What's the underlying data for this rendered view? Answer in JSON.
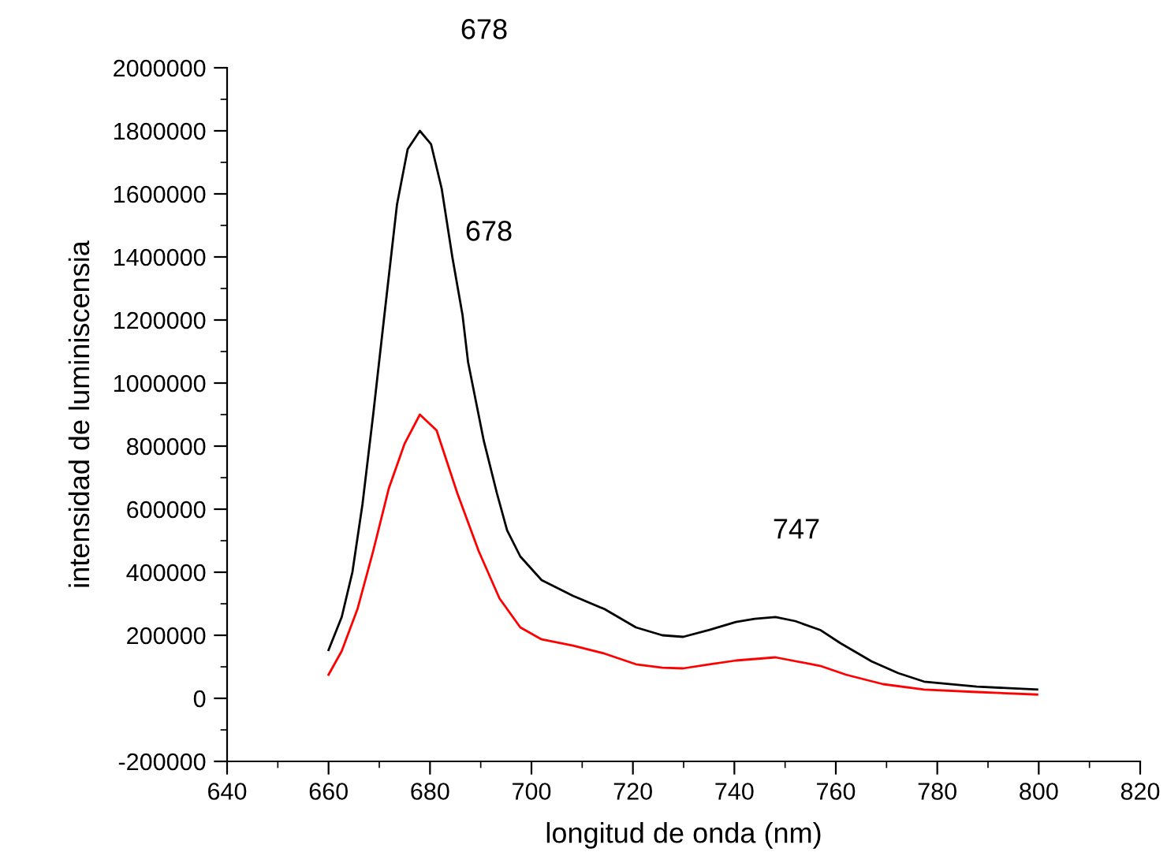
{
  "chart_data": {
    "type": "line",
    "xlabel": "longitud de onda (nm)",
    "ylabel": "intensidad de luminiscensia",
    "series": [
      {
        "color": "#000000",
        "x": [
          660,
          662.6,
          664.7,
          666.7,
          668.8,
          670.9,
          673.5,
          675.6,
          678,
          680.2,
          682.3,
          684.4,
          686.4,
          687.5,
          690.6,
          693.2,
          695.2,
          697.8,
          702,
          708.2,
          714.4,
          720.6,
          725.8,
          729.9,
          735.1,
          740.3,
          744,
          748.1,
          752,
          756.9,
          760.9,
          767.1,
          772.3,
          777.4,
          787.8,
          799.7
        ],
        "values": [
          153000,
          258000,
          400000,
          617000,
          900000,
          1200000,
          1567000,
          1742000,
          1800000,
          1758000,
          1617000,
          1400000,
          1217000,
          1067000,
          817000,
          650000,
          533000,
          450000,
          375000,
          325000,
          283000,
          225000,
          200000,
          195000,
          217000,
          242000,
          252000,
          258000,
          245000,
          217000,
          175000,
          117000,
          80000,
          53000,
          37000,
          28000
        ]
      },
      {
        "color": "#ff0000",
        "x": [
          660,
          662.6,
          665.7,
          668.8,
          671.9,
          675,
          678,
          681.3,
          685.4,
          689.6,
          693.7,
          697.8,
          702,
          708.2,
          714.4,
          720.6,
          725.8,
          729.9,
          735.1,
          740.3,
          748.1,
          756.9,
          762,
          769.3,
          777.4,
          787.8,
          799.7
        ],
        "values": [
          75000,
          150000,
          283000,
          467000,
          667000,
          808000,
          900000,
          850000,
          650000,
          467000,
          317000,
          225000,
          187000,
          167000,
          142000,
          108000,
          97000,
          95000,
          108000,
          120000,
          130000,
          103000,
          75000,
          45000,
          28000,
          20000,
          12000
        ]
      }
    ],
    "xlim": [
      640,
      820
    ],
    "xticks": [
      640,
      660,
      680,
      700,
      720,
      740,
      760,
      780,
      800,
      820
    ],
    "ylim": [
      -200000,
      2000000
    ],
    "yticks": [
      -200000,
      0,
      200000,
      400000,
      600000,
      800000,
      1000000,
      1200000,
      1400000,
      1600000,
      1800000,
      2000000
    ],
    "annotations": [
      "678",
      "678",
      "747"
    ],
    "grid": false,
    "legend": false,
    "marker": "none",
    "line_style": "solid"
  }
}
